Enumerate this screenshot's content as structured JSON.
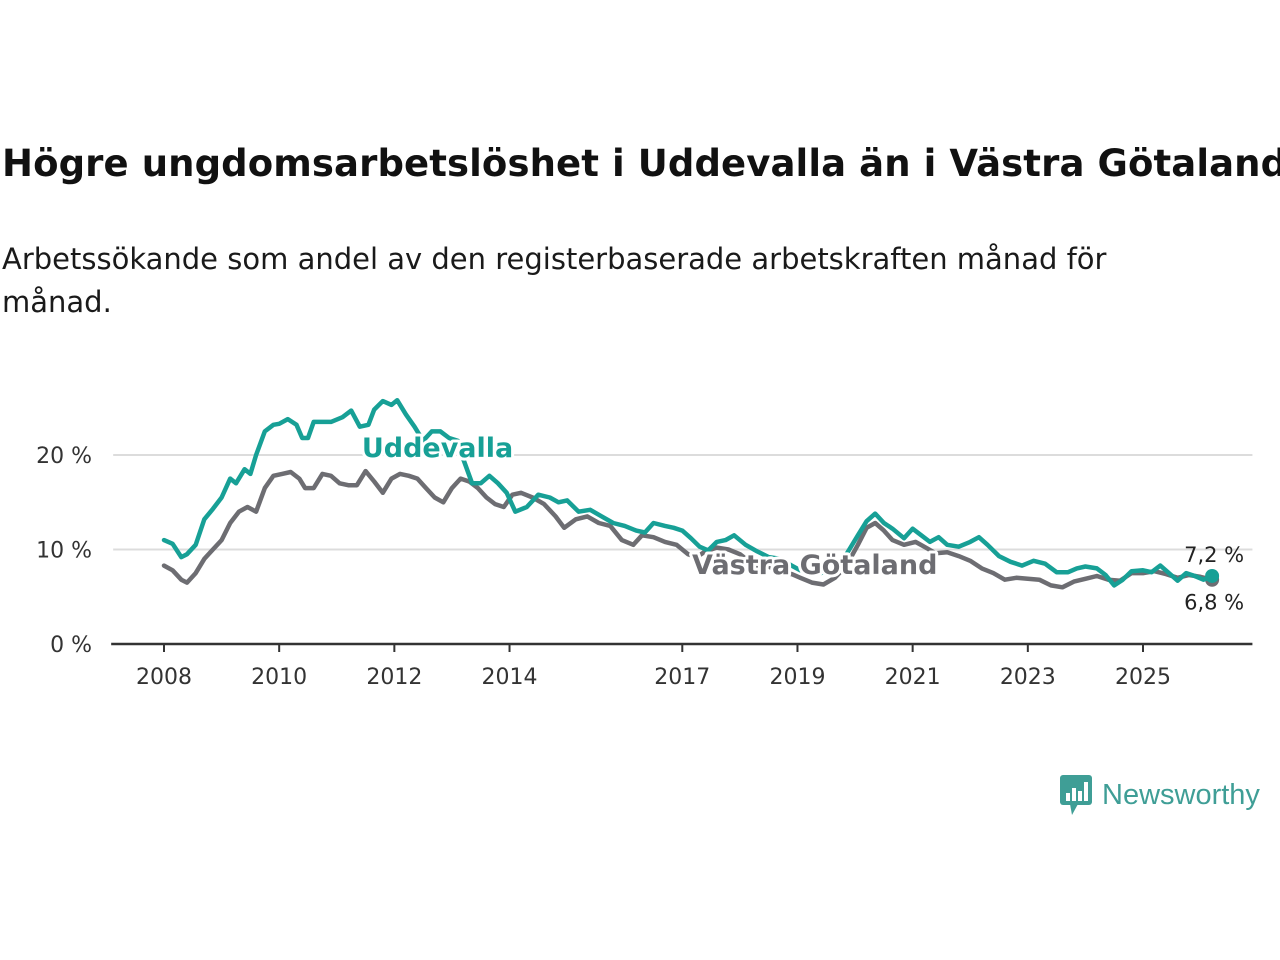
{
  "title": "Högre ungdomsarbetslöshet i Uddevalla än i Västra Götaland",
  "subtitle": "Arbetssökande som andel av den registerbaserade arbetskraften månad för månad.",
  "brand": "Newsworthy",
  "colors": {
    "uddevalla": "#17a096",
    "vastra": "#6d6d72",
    "grid": "#dcdcdc",
    "axis": "#333333"
  },
  "chart_data": {
    "type": "line",
    "title": "Högre ungdomsarbetslöshet i Uddevalla än i Västra Götaland",
    "xlabel": "",
    "ylabel": "",
    "ylim": [
      0,
      27
    ],
    "xlim": [
      2007.1,
      2026.9
    ],
    "y_ticks": [
      {
        "value": 0,
        "label": "0 %"
      },
      {
        "value": 10,
        "label": "10 %"
      },
      {
        "value": 20,
        "label": "20 %"
      }
    ],
    "x_ticks": [
      {
        "value": 2008,
        "label": "2008"
      },
      {
        "value": 2010,
        "label": "2010"
      },
      {
        "value": 2012,
        "label": "2012"
      },
      {
        "value": 2014,
        "label": "2014"
      },
      {
        "value": 2017,
        "label": "2017"
      },
      {
        "value": 2019,
        "label": "2019"
      },
      {
        "value": 2021,
        "label": "2021"
      },
      {
        "value": 2023,
        "label": "2023"
      },
      {
        "value": 2025,
        "label": "2025"
      }
    ],
    "grid": true,
    "series": [
      {
        "name": "Uddevalla",
        "label_at": [
          2012.75,
          19.8
        ],
        "end_label": "7,2 %",
        "points": [
          [
            2008.0,
            11.0
          ],
          [
            2008.15,
            10.6
          ],
          [
            2008.3,
            9.2
          ],
          [
            2008.4,
            9.5
          ],
          [
            2008.55,
            10.5
          ],
          [
            2008.7,
            13.2
          ],
          [
            2008.85,
            14.3
          ],
          [
            2009.0,
            15.5
          ],
          [
            2009.15,
            17.5
          ],
          [
            2009.25,
            17.0
          ],
          [
            2009.4,
            18.5
          ],
          [
            2009.5,
            18.0
          ],
          [
            2009.6,
            20.0
          ],
          [
            2009.75,
            22.5
          ],
          [
            2009.9,
            23.2
          ],
          [
            2010.0,
            23.3
          ],
          [
            2010.15,
            23.8
          ],
          [
            2010.3,
            23.2
          ],
          [
            2010.4,
            21.8
          ],
          [
            2010.5,
            21.8
          ],
          [
            2010.6,
            23.5
          ],
          [
            2010.75,
            23.5
          ],
          [
            2010.9,
            23.5
          ],
          [
            2011.1,
            24.0
          ],
          [
            2011.25,
            24.7
          ],
          [
            2011.4,
            23.0
          ],
          [
            2011.55,
            23.2
          ],
          [
            2011.65,
            24.8
          ],
          [
            2011.8,
            25.7
          ],
          [
            2011.95,
            25.3
          ],
          [
            2012.05,
            25.8
          ],
          [
            2012.2,
            24.3
          ],
          [
            2012.35,
            23.0
          ],
          [
            2012.5,
            21.5
          ],
          [
            2012.65,
            22.5
          ],
          [
            2012.8,
            22.5
          ],
          [
            2012.95,
            21.8
          ],
          [
            2013.1,
            21.5
          ],
          [
            2013.2,
            19.5
          ],
          [
            2013.35,
            17.0
          ],
          [
            2013.5,
            17.0
          ],
          [
            2013.65,
            17.8
          ],
          [
            2013.8,
            17.0
          ],
          [
            2013.95,
            16.0
          ],
          [
            2014.1,
            14.0
          ],
          [
            2014.3,
            14.5
          ],
          [
            2014.5,
            15.8
          ],
          [
            2014.7,
            15.5
          ],
          [
            2014.85,
            15.0
          ],
          [
            2015.0,
            15.2
          ],
          [
            2015.2,
            14.0
          ],
          [
            2015.4,
            14.2
          ],
          [
            2015.6,
            13.5
          ],
          [
            2015.8,
            12.8
          ],
          [
            2016.0,
            12.5
          ],
          [
            2016.2,
            12.0
          ],
          [
            2016.35,
            11.8
          ],
          [
            2016.5,
            12.8
          ],
          [
            2016.7,
            12.5
          ],
          [
            2016.85,
            12.3
          ],
          [
            2017.0,
            12.0
          ],
          [
            2017.15,
            11.2
          ],
          [
            2017.3,
            10.3
          ],
          [
            2017.45,
            9.9
          ],
          [
            2017.6,
            10.8
          ],
          [
            2017.75,
            11.0
          ],
          [
            2017.9,
            11.5
          ],
          [
            2018.1,
            10.5
          ],
          [
            2018.3,
            9.8
          ],
          [
            2018.5,
            9.2
          ],
          [
            2018.7,
            9.0
          ],
          [
            2018.9,
            8.3
          ],
          [
            2019.05,
            7.8
          ],
          [
            2019.2,
            8.0
          ],
          [
            2019.4,
            7.5
          ],
          [
            2019.6,
            7.8
          ],
          [
            2019.75,
            8.5
          ],
          [
            2019.9,
            10.0
          ],
          [
            2020.05,
            11.5
          ],
          [
            2020.2,
            13.0
          ],
          [
            2020.35,
            13.8
          ],
          [
            2020.5,
            12.8
          ],
          [
            2020.65,
            12.2
          ],
          [
            2020.85,
            11.2
          ],
          [
            2021.0,
            12.2
          ],
          [
            2021.15,
            11.5
          ],
          [
            2021.3,
            10.8
          ],
          [
            2021.45,
            11.3
          ],
          [
            2021.6,
            10.5
          ],
          [
            2021.8,
            10.3
          ],
          [
            2022.0,
            10.8
          ],
          [
            2022.15,
            11.3
          ],
          [
            2022.3,
            10.5
          ],
          [
            2022.5,
            9.3
          ],
          [
            2022.7,
            8.7
          ],
          [
            2022.9,
            8.3
          ],
          [
            2023.1,
            8.8
          ],
          [
            2023.3,
            8.5
          ],
          [
            2023.5,
            7.6
          ],
          [
            2023.7,
            7.6
          ],
          [
            2023.85,
            8.0
          ],
          [
            2024.0,
            8.2
          ],
          [
            2024.2,
            8.0
          ],
          [
            2024.35,
            7.3
          ],
          [
            2024.5,
            6.2
          ],
          [
            2024.65,
            6.8
          ],
          [
            2024.8,
            7.7
          ],
          [
            2025.0,
            7.8
          ],
          [
            2025.15,
            7.6
          ],
          [
            2025.3,
            8.3
          ],
          [
            2025.45,
            7.5
          ],
          [
            2025.6,
            6.7
          ],
          [
            2025.75,
            7.5
          ],
          [
            2025.9,
            7.2
          ],
          [
            2026.05,
            6.8
          ],
          [
            2026.2,
            7.2
          ]
        ]
      },
      {
        "name": "Västra Götaland",
        "label_at": [
          2019.3,
          7.4
        ],
        "end_label": "6,8 %",
        "points": [
          [
            2008.0,
            8.3
          ],
          [
            2008.15,
            7.8
          ],
          [
            2008.3,
            6.8
          ],
          [
            2008.4,
            6.5
          ],
          [
            2008.55,
            7.5
          ],
          [
            2008.7,
            9.0
          ],
          [
            2008.85,
            10.0
          ],
          [
            2009.0,
            11.0
          ],
          [
            2009.15,
            12.8
          ],
          [
            2009.3,
            14.0
          ],
          [
            2009.45,
            14.5
          ],
          [
            2009.6,
            14.0
          ],
          [
            2009.75,
            16.5
          ],
          [
            2009.9,
            17.8
          ],
          [
            2010.05,
            18.0
          ],
          [
            2010.2,
            18.2
          ],
          [
            2010.35,
            17.5
          ],
          [
            2010.45,
            16.5
          ],
          [
            2010.6,
            16.5
          ],
          [
            2010.75,
            18.0
          ],
          [
            2010.9,
            17.8
          ],
          [
            2011.05,
            17.0
          ],
          [
            2011.2,
            16.8
          ],
          [
            2011.35,
            16.8
          ],
          [
            2011.5,
            18.3
          ],
          [
            2011.65,
            17.2
          ],
          [
            2011.8,
            16.0
          ],
          [
            2011.95,
            17.5
          ],
          [
            2012.1,
            18.0
          ],
          [
            2012.25,
            17.8
          ],
          [
            2012.4,
            17.5
          ],
          [
            2012.55,
            16.5
          ],
          [
            2012.7,
            15.5
          ],
          [
            2012.85,
            15.0
          ],
          [
            2013.0,
            16.5
          ],
          [
            2013.15,
            17.5
          ],
          [
            2013.3,
            17.2
          ],
          [
            2013.45,
            16.5
          ],
          [
            2013.6,
            15.5
          ],
          [
            2013.75,
            14.8
          ],
          [
            2013.9,
            14.5
          ],
          [
            2014.05,
            15.8
          ],
          [
            2014.2,
            16.0
          ],
          [
            2014.4,
            15.5
          ],
          [
            2014.6,
            14.8
          ],
          [
            2014.8,
            13.5
          ],
          [
            2014.95,
            12.3
          ],
          [
            2015.15,
            13.2
          ],
          [
            2015.35,
            13.5
          ],
          [
            2015.55,
            12.8
          ],
          [
            2015.75,
            12.5
          ],
          [
            2015.95,
            11.0
          ],
          [
            2016.15,
            10.5
          ],
          [
            2016.3,
            11.5
          ],
          [
            2016.5,
            11.3
          ],
          [
            2016.7,
            10.8
          ],
          [
            2016.9,
            10.5
          ],
          [
            2017.1,
            9.5
          ],
          [
            2017.25,
            9.2
          ],
          [
            2017.4,
            9.8
          ],
          [
            2017.6,
            10.2
          ],
          [
            2017.8,
            10.0
          ],
          [
            2018.0,
            9.5
          ],
          [
            2018.15,
            8.8
          ],
          [
            2018.3,
            8.0
          ],
          [
            2018.5,
            8.2
          ],
          [
            2018.7,
            7.6
          ],
          [
            2018.9,
            7.4
          ],
          [
            2019.05,
            7.0
          ],
          [
            2019.25,
            6.5
          ],
          [
            2019.45,
            6.3
          ],
          [
            2019.65,
            7.0
          ],
          [
            2019.85,
            8.3
          ],
          [
            2020.05,
            10.5
          ],
          [
            2020.2,
            12.3
          ],
          [
            2020.35,
            12.8
          ],
          [
            2020.5,
            12.0
          ],
          [
            2020.65,
            11.0
          ],
          [
            2020.85,
            10.5
          ],
          [
            2021.05,
            10.8
          ],
          [
            2021.2,
            10.3
          ],
          [
            2021.4,
            9.6
          ],
          [
            2021.6,
            9.7
          ],
          [
            2021.8,
            9.3
          ],
          [
            2022.0,
            8.8
          ],
          [
            2022.2,
            8.0
          ],
          [
            2022.4,
            7.5
          ],
          [
            2022.6,
            6.8
          ],
          [
            2022.8,
            7.0
          ],
          [
            2023.0,
            6.9
          ],
          [
            2023.2,
            6.8
          ],
          [
            2023.4,
            6.2
          ],
          [
            2023.6,
            6.0
          ],
          [
            2023.8,
            6.6
          ],
          [
            2024.0,
            6.9
          ],
          [
            2024.2,
            7.2
          ],
          [
            2024.4,
            6.8
          ],
          [
            2024.6,
            6.7
          ],
          [
            2024.8,
            7.5
          ],
          [
            2025.0,
            7.5
          ],
          [
            2025.2,
            7.7
          ],
          [
            2025.4,
            7.4
          ],
          [
            2025.6,
            7.0
          ],
          [
            2025.8,
            7.3
          ],
          [
            2026.0,
            7.1
          ],
          [
            2026.2,
            6.8
          ]
        ]
      }
    ]
  }
}
